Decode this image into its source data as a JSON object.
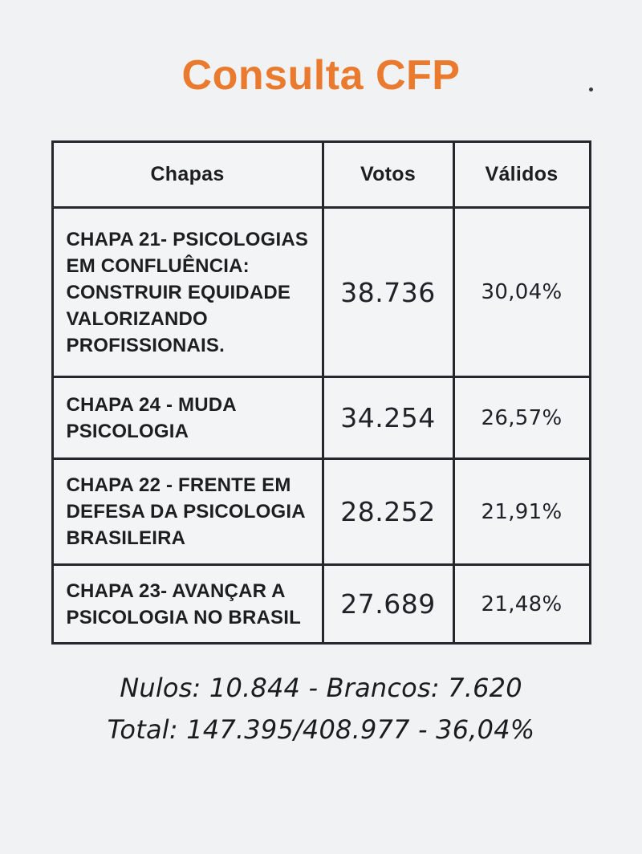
{
  "colors": {
    "background": "#f1f2f3",
    "accent_orange": "#e97a2e",
    "table_border": "#27272b",
    "text": "#1e1e20"
  },
  "title": "Consulta CFP",
  "table": {
    "headers": [
      "Chapas",
      "Votos",
      "Válidos"
    ],
    "rows": [
      {
        "chapa": "CHAPA 21- PSICOLOGIAS\nEM CONFLUÊNCIA:\nCONSTRUIR EQUIDADE\nVALORIZANDO\nPROFISSIONAIS.",
        "votos": "38.736",
        "validos": "30,04%"
      },
      {
        "chapa": "CHAPA 24 - MUDA\nPSICOLOGIA",
        "votos": "34.254",
        "validos": "26,57%"
      },
      {
        "chapa": "CHAPA 22 - FRENTE EM\nDEFESA DA PSICOLOGIA\nBRASILEIRA",
        "votos": "28.252",
        "validos": "21,91%"
      },
      {
        "chapa": "CHAPA 23- AVANÇAR A\nPSICOLOGIA NO BRASIL",
        "votos": "27.689",
        "validos": "21,48%"
      }
    ]
  },
  "footer": {
    "line1": "Nulos: 10.844 - Brancos: 7.620",
    "line2": "Total: 147.395/408.977 - 36,04%"
  },
  "chart_data": {
    "type": "table",
    "title": "Consulta CFP",
    "columns": [
      "Chapas",
      "Votos",
      "Válidos"
    ],
    "rows": [
      {
        "chapa": "CHAPA 21- PSICOLOGIAS EM CONFLUÊNCIA: CONSTRUIR EQUIDADE VALORIZANDO PROFISSIONAIS.",
        "votos": 38736,
        "validos_pct": 30.04
      },
      {
        "chapa": "CHAPA 24 - MUDA PSICOLOGIA",
        "votos": 34254,
        "validos_pct": 26.57
      },
      {
        "chapa": "CHAPA 22 - FRENTE EM DEFESA DA PSICOLOGIA BRASILEIRA",
        "votos": 28252,
        "validos_pct": 21.91
      },
      {
        "chapa": "CHAPA 23- AVANÇAR A PSICOLOGIA NO BRASIL",
        "votos": 27689,
        "validos_pct": 21.48
      }
    ],
    "annotations": [
      "Nulos: 10.844 - Brancos: 7.620",
      "Total: 147.395/408.977 - 36,04%"
    ],
    "nulos": 10844,
    "brancos": 7620,
    "total_votantes": 147395,
    "total_aptos": 408977,
    "participacao_pct": 36.04
  }
}
